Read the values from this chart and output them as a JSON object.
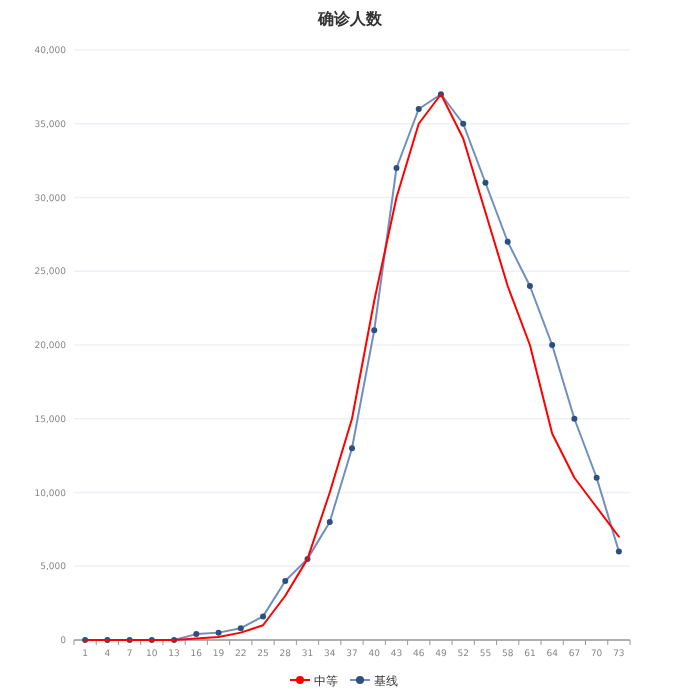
{
  "chart_data": {
    "type": "line",
    "title": "确诊人数",
    "categories": [
      "1",
      "4",
      "7",
      "10",
      "13",
      "16",
      "19",
      "22",
      "25",
      "28",
      "31",
      "34",
      "37",
      "40",
      "43",
      "46",
      "49",
      "52",
      "55",
      "58",
      "61",
      "64",
      "67",
      "70",
      "73"
    ],
    "series": [
      {
        "name": "中等",
        "color": "#ff0000",
        "marker": "none",
        "values": [
          0,
          0,
          0,
          0,
          0,
          100,
          200,
          500,
          1000,
          3000,
          5500,
          10000,
          15000,
          23000,
          30000,
          35000,
          37000,
          34000,
          29000,
          24000,
          20000,
          14000,
          11000,
          9000,
          7000
        ]
      },
      {
        "name": "基线",
        "color": "#6f8fbf",
        "marker": "circle",
        "values": [
          0,
          0,
          0,
          0,
          0,
          400,
          500,
          800,
          1600,
          4000,
          5500,
          8000,
          13000,
          21000,
          32000,
          36000,
          37000,
          35000,
          31000,
          27000,
          24000,
          20000,
          15000,
          11000,
          6000
        ]
      }
    ],
    "ylim": [
      0,
      40000
    ],
    "yticks": [
      {
        "value": 0,
        "label": "0"
      },
      {
        "value": 5000,
        "label": "5,000"
      },
      {
        "value": 10000,
        "label": "10,000"
      },
      {
        "value": 15000,
        "label": "15,000"
      },
      {
        "value": 20000,
        "label": "20,000"
      },
      {
        "value": 25000,
        "label": "25,000"
      },
      {
        "value": 30000,
        "label": "30,000"
      },
      {
        "value": 35000,
        "label": "35,000"
      },
      {
        "value": 40000,
        "label": "40,000"
      }
    ],
    "grid": "y",
    "legend": "bottom",
    "line_style": "solid"
  }
}
